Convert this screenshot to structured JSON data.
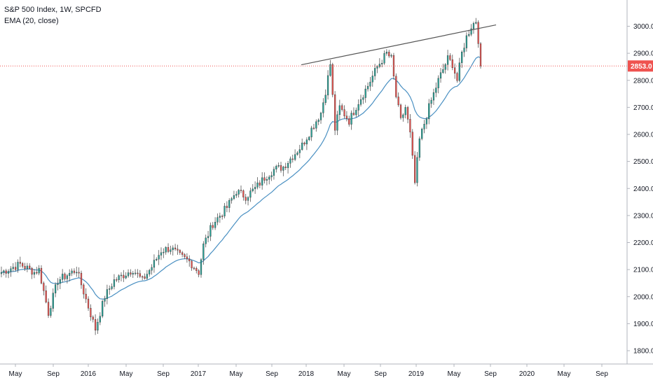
{
  "legend": {
    "symbol_line": "S&P 500 Index, 1W, SPCFD",
    "indicator_line": "EMA (20, close)"
  },
  "colors": {
    "up": "#26a69a",
    "down": "#ef5350",
    "ema": "#4a90c2",
    "trendline": "#555555",
    "price_line": "#ef5350",
    "grid": "#f0f3fa",
    "axis_text": "#131722"
  },
  "chart_data": {
    "type": "candlestick",
    "title": "S&P 500 Index, 1W, SPCFD",
    "interval": "1W",
    "indicator": "EMA (20, close)",
    "ylim": [
      1750,
      3060
    ],
    "y_ticks": [
      "1800.0",
      "1900.0",
      "2000.0",
      "2100.0",
      "2200.0",
      "2300.0",
      "2400.0",
      "2500.0",
      "2600.0",
      "2700.0",
      "2800.0",
      "2900.0",
      "3000.0"
    ],
    "x_ticks": [
      "May",
      "Sep",
      "2016",
      "May",
      "Sep",
      "2017",
      "May",
      "Sep",
      "2018",
      "May",
      "Sep",
      "2019",
      "May",
      "Sep",
      "2020",
      "May",
      "Sep"
    ],
    "last_price": "2853.0",
    "grid": false,
    "series_close_keyframes": [
      [
        0,
        2090
      ],
      [
        8,
        2120
      ],
      [
        14,
        2090
      ],
      [
        16,
        2100
      ],
      [
        20,
        1940
      ],
      [
        24,
        2060
      ],
      [
        28,
        2080
      ],
      [
        32,
        2100
      ],
      [
        36,
        1990
      ],
      [
        40,
        1880
      ],
      [
        44,
        2000
      ],
      [
        48,
        2060
      ],
      [
        56,
        2100
      ],
      [
        60,
        2060
      ],
      [
        64,
        2110
      ],
      [
        68,
        2170
      ],
      [
        72,
        2180
      ],
      [
        76,
        2150
      ],
      [
        80,
        2130
      ],
      [
        84,
        2090
      ],
      [
        86,
        2190
      ],
      [
        90,
        2270
      ],
      [
        96,
        2330
      ],
      [
        100,
        2390
      ],
      [
        104,
        2370
      ],
      [
        108,
        2400
      ],
      [
        112,
        2440
      ],
      [
        116,
        2470
      ],
      [
        120,
        2480
      ],
      [
        124,
        2520
      ],
      [
        128,
        2560
      ],
      [
        132,
        2620
      ],
      [
        136,
        2680
      ],
      [
        138,
        2760
      ],
      [
        140,
        2860
      ],
      [
        142,
        2620
      ],
      [
        144,
        2700
      ],
      [
        148,
        2650
      ],
      [
        152,
        2720
      ],
      [
        156,
        2780
      ],
      [
        160,
        2850
      ],
      [
        164,
        2900
      ],
      [
        166,
        2880
      ],
      [
        168,
        2740
      ],
      [
        170,
        2650
      ],
      [
        172,
        2700
      ],
      [
        174,
        2600
      ],
      [
        176,
        2420
      ],
      [
        178,
        2580
      ],
      [
        182,
        2700
      ],
      [
        186,
        2800
      ],
      [
        190,
        2880
      ],
      [
        192,
        2860
      ],
      [
        194,
        2800
      ],
      [
        196,
        2900
      ],
      [
        198,
        2960
      ],
      [
        200,
        3000
      ],
      [
        202,
        3020
      ],
      [
        203,
        2950
      ],
      [
        204,
        2853
      ]
    ],
    "trendline": [
      [
        "Jan 2018",
        2860
      ],
      [
        "Aug 2019",
        3005
      ]
    ]
  }
}
